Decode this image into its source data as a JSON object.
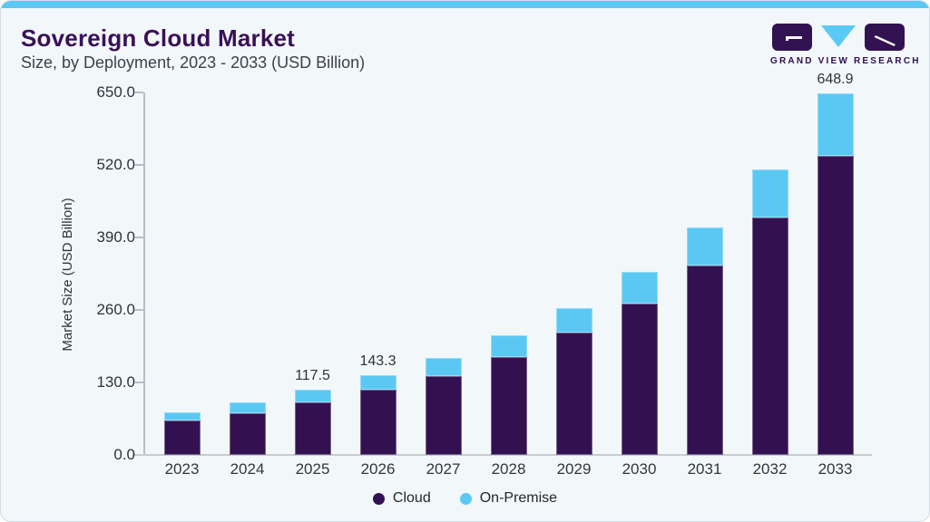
{
  "header": {
    "title": "Sovereign Cloud Market",
    "subtitle": "Size, by Deployment, 2023 - 2033 (USD Billion)"
  },
  "brand": {
    "wordmark": "GRAND VIEW RESEARCH"
  },
  "colors": {
    "accent_blue": "#5BC9F5",
    "cloud_purple": "#331151",
    "on_premise_blue": "#5BC8F4",
    "title_purple": "#3A1058",
    "card_background": "#F2F7FA",
    "axis_gray": "#B7BEC5"
  },
  "chart_data": {
    "type": "bar",
    "stacked": true,
    "title": "Sovereign Cloud Market Size, by Deployment, 2023 - 2033 (USD Billion)",
    "categories": [
      "2023",
      "2024",
      "2025",
      "2026",
      "2027",
      "2028",
      "2029",
      "2030",
      "2031",
      "2032",
      "2033"
    ],
    "series": [
      {
        "name": "Cloud",
        "color": "#331151",
        "values": [
          61.2,
          75.3,
          93.5,
          116.4,
          142.0,
          175.1,
          218.8,
          270.8,
          339.5,
          425.5,
          536.9
        ]
      },
      {
        "name": "On-Premise",
        "color": "#5BC8F4",
        "values": [
          15.8,
          19.4,
          24.0,
          26.9,
          32.0,
          39.6,
          45.2,
          56.8,
          68.0,
          86.2,
          112.0
        ]
      }
    ],
    "totals": [
      77.0,
      94.7,
      117.5,
      143.3,
      174.0,
      214.7,
      264.0,
      327.6,
      407.5,
      511.7,
      648.9
    ],
    "total_labels": {
      "2025": "117.5",
      "2026": "143.3",
      "2033": "648.9"
    },
    "xlabel": "",
    "ylabel": "Market Size (USD Billion)",
    "ylim": [
      0,
      650
    ],
    "yticks": [
      0,
      130,
      260,
      390,
      520,
      650
    ],
    "ytick_labels": [
      "0.0",
      "130.0",
      "260.0",
      "390.0",
      "520.0",
      "650.0"
    ],
    "grid": false,
    "legend_position": "bottom"
  },
  "legend": {
    "items": [
      {
        "label": "Cloud",
        "color": "#331151"
      },
      {
        "label": "On-Premise",
        "color": "#5BC8F4"
      }
    ]
  }
}
